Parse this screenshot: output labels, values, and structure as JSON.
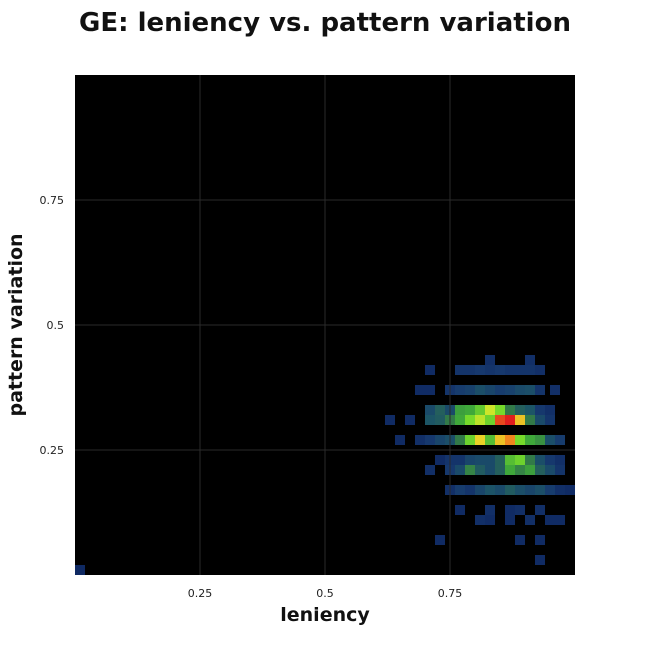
{
  "chart_data": {
    "type": "heatmap",
    "title": "GE: leniency vs. pattern variation",
    "xlabel": "leniency",
    "ylabel": "pattern variation",
    "xlim": [
      0,
      1
    ],
    "ylim": [
      0,
      1
    ],
    "grid": true,
    "bin_size": 0.02,
    "xticks": [
      0.25,
      0.5,
      0.75
    ],
    "xtick_labels": [
      "0.25",
      "0.5",
      "0.75"
    ],
    "yticks": [
      0.25,
      0.5,
      0.75
    ],
    "ytick_labels": [
      "0.25",
      "0.5",
      "0.75"
    ],
    "background_color": "#000000",
    "grid_color": "#2a2a2a",
    "colormap": [
      "#0b1e5a",
      "#16396e",
      "#1c5566",
      "#2f6f4c",
      "#3fa83a",
      "#78dc2a",
      "#e8e82a",
      "#f08a1e",
      "#e01e1e"
    ],
    "cells": [
      {
        "x": 0.0,
        "y": 0.0,
        "v": 0.05
      },
      {
        "x": 0.82,
        "y": 0.42,
        "v": 0.08
      },
      {
        "x": 0.9,
        "y": 0.42,
        "v": 0.08
      },
      {
        "x": 0.7,
        "y": 0.4,
        "v": 0.06
      },
      {
        "x": 0.76,
        "y": 0.4,
        "v": 0.1
      },
      {
        "x": 0.78,
        "y": 0.4,
        "v": 0.1
      },
      {
        "x": 0.8,
        "y": 0.4,
        "v": 0.12
      },
      {
        "x": 0.82,
        "y": 0.4,
        "v": 0.1
      },
      {
        "x": 0.84,
        "y": 0.4,
        "v": 0.12
      },
      {
        "x": 0.86,
        "y": 0.4,
        "v": 0.1
      },
      {
        "x": 0.88,
        "y": 0.4,
        "v": 0.1
      },
      {
        "x": 0.9,
        "y": 0.4,
        "v": 0.1
      },
      {
        "x": 0.92,
        "y": 0.4,
        "v": 0.08
      },
      {
        "x": 0.68,
        "y": 0.36,
        "v": 0.06
      },
      {
        "x": 0.7,
        "y": 0.36,
        "v": 0.06
      },
      {
        "x": 0.74,
        "y": 0.36,
        "v": 0.1
      },
      {
        "x": 0.76,
        "y": 0.36,
        "v": 0.14
      },
      {
        "x": 0.78,
        "y": 0.36,
        "v": 0.16
      },
      {
        "x": 0.8,
        "y": 0.36,
        "v": 0.22
      },
      {
        "x": 0.82,
        "y": 0.36,
        "v": 0.18
      },
      {
        "x": 0.84,
        "y": 0.36,
        "v": 0.14
      },
      {
        "x": 0.86,
        "y": 0.36,
        "v": 0.16
      },
      {
        "x": 0.88,
        "y": 0.36,
        "v": 0.2
      },
      {
        "x": 0.9,
        "y": 0.36,
        "v": 0.22
      },
      {
        "x": 0.92,
        "y": 0.36,
        "v": 0.1
      },
      {
        "x": 0.95,
        "y": 0.36,
        "v": 0.08
      },
      {
        "x": 0.7,
        "y": 0.32,
        "v": 0.2
      },
      {
        "x": 0.72,
        "y": 0.32,
        "v": 0.3
      },
      {
        "x": 0.74,
        "y": 0.32,
        "v": 0.2
      },
      {
        "x": 0.76,
        "y": 0.32,
        "v": 0.48
      },
      {
        "x": 0.78,
        "y": 0.32,
        "v": 0.5
      },
      {
        "x": 0.8,
        "y": 0.32,
        "v": 0.58
      },
      {
        "x": 0.82,
        "y": 0.32,
        "v": 0.72
      },
      {
        "x": 0.84,
        "y": 0.32,
        "v": 0.62
      },
      {
        "x": 0.86,
        "y": 0.32,
        "v": 0.4
      },
      {
        "x": 0.88,
        "y": 0.32,
        "v": 0.3
      },
      {
        "x": 0.9,
        "y": 0.32,
        "v": 0.25
      },
      {
        "x": 0.92,
        "y": 0.32,
        "v": 0.12
      },
      {
        "x": 0.94,
        "y": 0.32,
        "v": 0.08
      },
      {
        "x": 0.62,
        "y": 0.3,
        "v": 0.06
      },
      {
        "x": 0.66,
        "y": 0.3,
        "v": 0.06
      },
      {
        "x": 0.7,
        "y": 0.3,
        "v": 0.25
      },
      {
        "x": 0.72,
        "y": 0.3,
        "v": 0.28
      },
      {
        "x": 0.74,
        "y": 0.3,
        "v": 0.4
      },
      {
        "x": 0.76,
        "y": 0.3,
        "v": 0.5
      },
      {
        "x": 0.78,
        "y": 0.3,
        "v": 0.62
      },
      {
        "x": 0.8,
        "y": 0.3,
        "v": 0.7
      },
      {
        "x": 0.82,
        "y": 0.3,
        "v": 0.6
      },
      {
        "x": 0.84,
        "y": 0.3,
        "v": 0.95
      },
      {
        "x": 0.86,
        "y": 0.3,
        "v": 1.0
      },
      {
        "x": 0.88,
        "y": 0.3,
        "v": 0.8
      },
      {
        "x": 0.9,
        "y": 0.3,
        "v": 0.4
      },
      {
        "x": 0.92,
        "y": 0.3,
        "v": 0.2
      },
      {
        "x": 0.94,
        "y": 0.3,
        "v": 0.1
      },
      {
        "x": 0.64,
        "y": 0.26,
        "v": 0.06
      },
      {
        "x": 0.68,
        "y": 0.26,
        "v": 0.08
      },
      {
        "x": 0.7,
        "y": 0.26,
        "v": 0.12
      },
      {
        "x": 0.72,
        "y": 0.26,
        "v": 0.18
      },
      {
        "x": 0.74,
        "y": 0.26,
        "v": 0.22
      },
      {
        "x": 0.76,
        "y": 0.26,
        "v": 0.4
      },
      {
        "x": 0.78,
        "y": 0.26,
        "v": 0.6
      },
      {
        "x": 0.8,
        "y": 0.26,
        "v": 0.78
      },
      {
        "x": 0.82,
        "y": 0.26,
        "v": 0.55
      },
      {
        "x": 0.84,
        "y": 0.26,
        "v": 0.8
      },
      {
        "x": 0.86,
        "y": 0.26,
        "v": 0.88
      },
      {
        "x": 0.88,
        "y": 0.26,
        "v": 0.62
      },
      {
        "x": 0.9,
        "y": 0.26,
        "v": 0.5
      },
      {
        "x": 0.92,
        "y": 0.26,
        "v": 0.45
      },
      {
        "x": 0.94,
        "y": 0.26,
        "v": 0.22
      },
      {
        "x": 0.96,
        "y": 0.26,
        "v": 0.14
      },
      {
        "x": 0.72,
        "y": 0.22,
        "v": 0.06
      },
      {
        "x": 0.74,
        "y": 0.22,
        "v": 0.1
      },
      {
        "x": 0.76,
        "y": 0.22,
        "v": 0.1
      },
      {
        "x": 0.78,
        "y": 0.22,
        "v": 0.18
      },
      {
        "x": 0.8,
        "y": 0.22,
        "v": 0.2
      },
      {
        "x": 0.82,
        "y": 0.22,
        "v": 0.2
      },
      {
        "x": 0.84,
        "y": 0.22,
        "v": 0.3
      },
      {
        "x": 0.86,
        "y": 0.22,
        "v": 0.55
      },
      {
        "x": 0.88,
        "y": 0.22,
        "v": 0.6
      },
      {
        "x": 0.9,
        "y": 0.22,
        "v": 0.4
      },
      {
        "x": 0.92,
        "y": 0.22,
        "v": 0.22
      },
      {
        "x": 0.94,
        "y": 0.22,
        "v": 0.12
      },
      {
        "x": 0.96,
        "y": 0.22,
        "v": 0.08
      },
      {
        "x": 0.7,
        "y": 0.2,
        "v": 0.08
      },
      {
        "x": 0.74,
        "y": 0.2,
        "v": 0.12
      },
      {
        "x": 0.76,
        "y": 0.2,
        "v": 0.2
      },
      {
        "x": 0.78,
        "y": 0.2,
        "v": 0.42
      },
      {
        "x": 0.8,
        "y": 0.2,
        "v": 0.28
      },
      {
        "x": 0.82,
        "y": 0.2,
        "v": 0.2
      },
      {
        "x": 0.84,
        "y": 0.2,
        "v": 0.3
      },
      {
        "x": 0.86,
        "y": 0.2,
        "v": 0.5
      },
      {
        "x": 0.88,
        "y": 0.2,
        "v": 0.42
      },
      {
        "x": 0.9,
        "y": 0.2,
        "v": 0.48
      },
      {
        "x": 0.92,
        "y": 0.2,
        "v": 0.3
      },
      {
        "x": 0.94,
        "y": 0.2,
        "v": 0.2
      },
      {
        "x": 0.96,
        "y": 0.2,
        "v": 0.1
      },
      {
        "x": 0.74,
        "y": 0.16,
        "v": 0.08
      },
      {
        "x": 0.76,
        "y": 0.16,
        "v": 0.14
      },
      {
        "x": 0.78,
        "y": 0.16,
        "v": 0.1
      },
      {
        "x": 0.8,
        "y": 0.16,
        "v": 0.18
      },
      {
        "x": 0.82,
        "y": 0.16,
        "v": 0.24
      },
      {
        "x": 0.84,
        "y": 0.16,
        "v": 0.2
      },
      {
        "x": 0.86,
        "y": 0.16,
        "v": 0.28
      },
      {
        "x": 0.88,
        "y": 0.16,
        "v": 0.22
      },
      {
        "x": 0.9,
        "y": 0.16,
        "v": 0.18
      },
      {
        "x": 0.92,
        "y": 0.16,
        "v": 0.22
      },
      {
        "x": 0.94,
        "y": 0.16,
        "v": 0.14
      },
      {
        "x": 0.96,
        "y": 0.16,
        "v": 0.08
      },
      {
        "x": 0.98,
        "y": 0.16,
        "v": 0.06
      },
      {
        "x": 0.76,
        "y": 0.12,
        "v": 0.06
      },
      {
        "x": 0.82,
        "y": 0.12,
        "v": 0.08
      },
      {
        "x": 0.86,
        "y": 0.12,
        "v": 0.06
      },
      {
        "x": 0.88,
        "y": 0.12,
        "v": 0.08
      },
      {
        "x": 0.92,
        "y": 0.12,
        "v": 0.08
      },
      {
        "x": 0.8,
        "y": 0.1,
        "v": 0.08
      },
      {
        "x": 0.82,
        "y": 0.1,
        "v": 0.06
      },
      {
        "x": 0.86,
        "y": 0.1,
        "v": 0.06
      },
      {
        "x": 0.9,
        "y": 0.1,
        "v": 0.08
      },
      {
        "x": 0.94,
        "y": 0.1,
        "v": 0.06
      },
      {
        "x": 0.96,
        "y": 0.1,
        "v": 0.06
      },
      {
        "x": 0.72,
        "y": 0.06,
        "v": 0.06
      },
      {
        "x": 0.88,
        "y": 0.06,
        "v": 0.06
      },
      {
        "x": 0.92,
        "y": 0.06,
        "v": 0.06
      },
      {
        "x": 0.92,
        "y": 0.02,
        "v": 0.06
      }
    ]
  }
}
